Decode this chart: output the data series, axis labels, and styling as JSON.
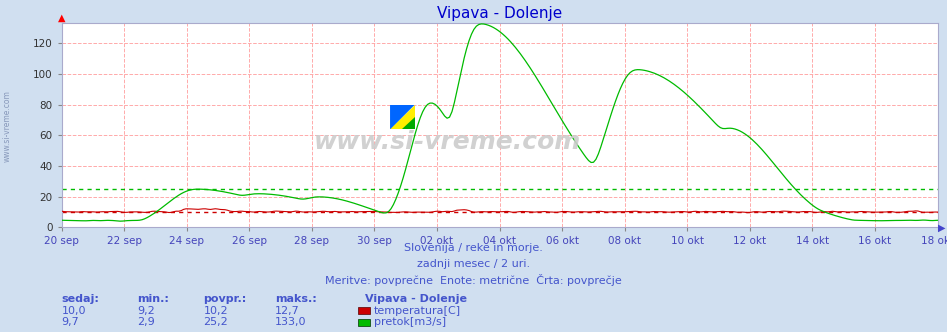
{
  "title": "Vipava - Dolenje",
  "title_color": "#0000cc",
  "bg_color": "#d0dff0",
  "plot_bg_color": "#ffffff",
  "grid_color": "#ffaaaa",
  "xlabel_color": "#4444bb",
  "x_labels": [
    "20 sep",
    "22 sep",
    "24 sep",
    "26 sep",
    "28 sep",
    "30 sep",
    "02 okt",
    "04 okt",
    "06 okt",
    "08 okt",
    "10 okt",
    "12 okt",
    "14 okt",
    "16 okt",
    "18 okt"
  ],
  "yticks": [
    0,
    20,
    40,
    60,
    80,
    100,
    120
  ],
  "ymax": 133,
  "temp_color": "#cc0000",
  "flow_color": "#00bb00",
  "temp_avg": 10.2,
  "flow_avg": 25.2,
  "footer_line1": "Slovenija / reke in morje.",
  "footer_line2": "zadnji mesec / 2 uri.",
  "footer_line3": "Meritve: povprečne  Enote: metrične  Črta: povprečje",
  "footer_color": "#4455cc",
  "watermark": "www.si-vreme.com",
  "sidebar_text": "www.si-vreme.com",
  "table_headers": [
    "sedaj:",
    "min.:",
    "povpr.:",
    "maks.:"
  ],
  "table_label": "Vipava - Dolenje",
  "temp_row": [
    "10,0",
    "9,2",
    "10,2",
    "12,7"
  ],
  "temp_legend": "temperatura[C]",
  "flow_row": [
    "9,7",
    "2,9",
    "25,2",
    "133,0"
  ],
  "flow_legend": "pretok[m3/s]",
  "n_points": 360
}
